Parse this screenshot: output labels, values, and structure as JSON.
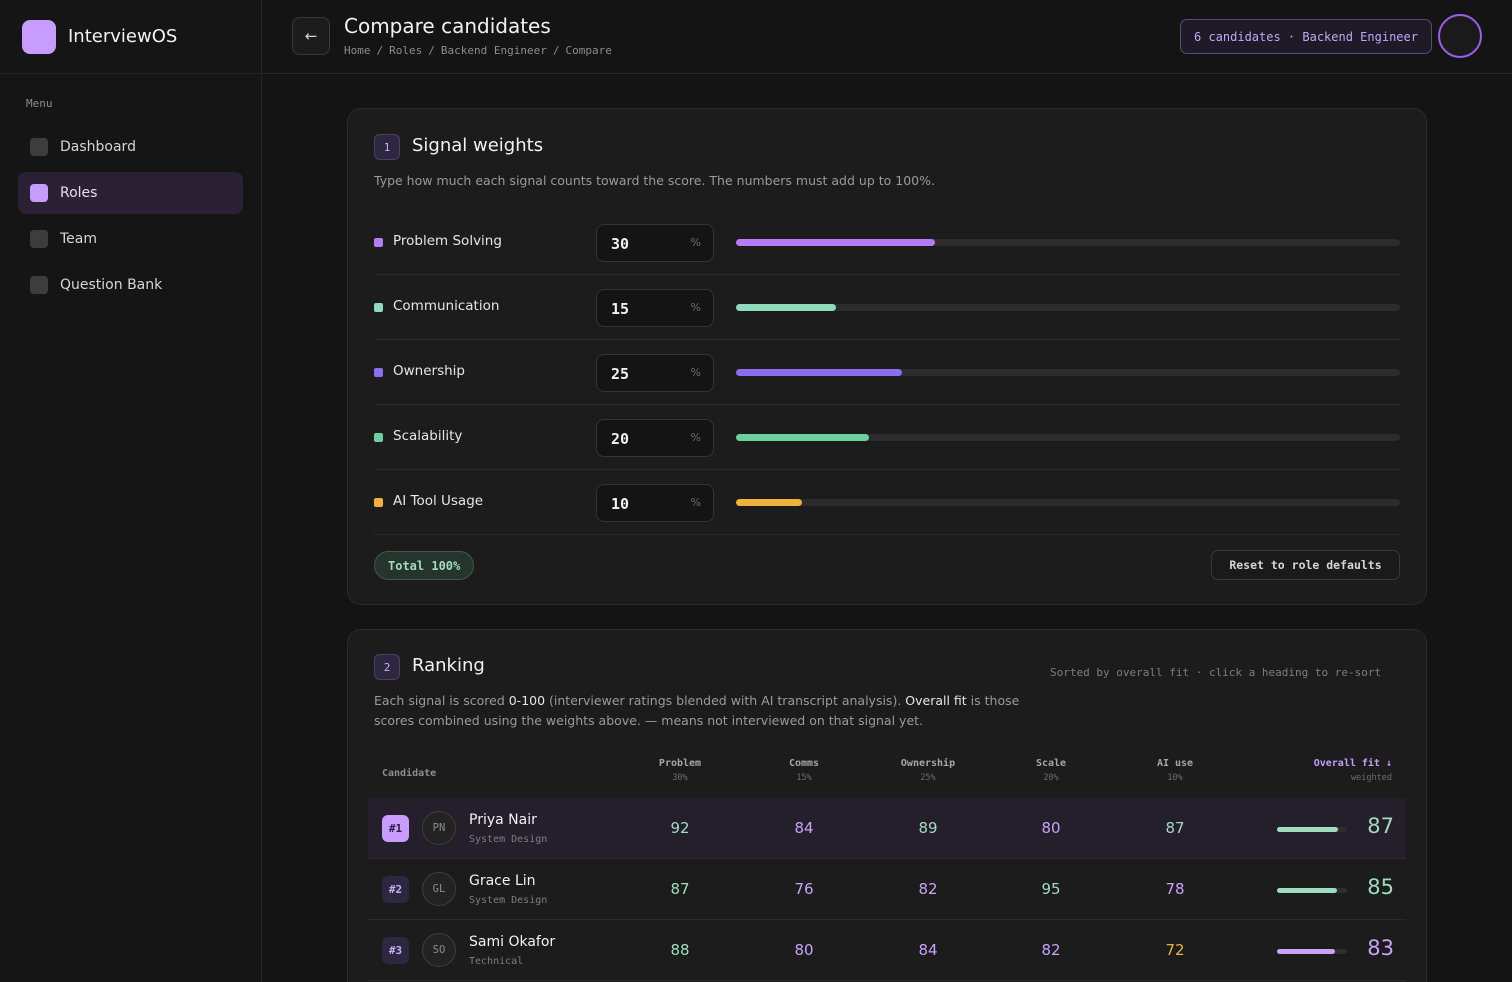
{
  "app": {
    "name": "InterviewOS"
  },
  "sidebar": {
    "menu_label": "Menu",
    "items": [
      {
        "label": "Dashboard",
        "active": false
      },
      {
        "label": "Roles",
        "active": true
      },
      {
        "label": "Team",
        "active": false
      },
      {
        "label": "Question Bank",
        "active": false
      }
    ]
  },
  "header": {
    "back_icon": "←",
    "title": "Compare candidates",
    "breadcrumb": [
      "Home",
      "Roles",
      "Backend Engineer",
      "Compare"
    ],
    "candidates_chip": "6 candidates · Backend Engineer"
  },
  "weights": {
    "step": "1",
    "title": "Signal weights",
    "description": "Type how much each signal counts toward the score. The numbers must add up to 100%.",
    "unit": "%",
    "items": [
      {
        "label": "Problem Solving",
        "value": "30",
        "fraction": 0.3,
        "color": "#b57cf5"
      },
      {
        "label": "Communication",
        "value": "15",
        "fraction": 0.15,
        "color": "#8fd9bd"
      },
      {
        "label": "Ownership",
        "value": "25",
        "fraction": 0.25,
        "color": "#8a6df0"
      },
      {
        "label": "Scalability",
        "value": "20",
        "fraction": 0.2,
        "color": "#6ccf9f"
      },
      {
        "label": "AI Tool Usage",
        "value": "10",
        "fraction": 0.1,
        "color": "#f0b23c"
      }
    ],
    "total_label": "Total 100%",
    "reset_label": "Reset to role defaults"
  },
  "ranking": {
    "step": "2",
    "title": "Ranking",
    "sort_note": "Sorted by overall fit · click a heading to re-sort",
    "desc_part1": "Each signal is scored ",
    "desc_strong1": "0-100",
    "desc_part2": " (interviewer ratings blended with AI transcript analysis). ",
    "desc_strong2": "Overall fit",
    "desc_part3": " is those scores combined using the weights above. — means not interviewed on that signal yet.",
    "columns": {
      "candidate": "Candidate",
      "problem": {
        "label": "Problem",
        "weight": "30%"
      },
      "comms": {
        "label": "Comms",
        "weight": "15%"
      },
      "ownership": {
        "label": "Ownership",
        "weight": "25%"
      },
      "scale": {
        "label": "Scale",
        "weight": "20%"
      },
      "ai": {
        "label": "AI use",
        "weight": "10%"
      },
      "overall": {
        "label": "Overall fit ↓",
        "sub": "weighted"
      }
    },
    "rows": [
      {
        "rank": "#1",
        "initials": "PN",
        "name": "Priya Nair",
        "type": "System Design",
        "problem": "92",
        "comms": "84",
        "ownership": "89",
        "scale": "80",
        "ai": "87",
        "overall": "87",
        "overall_fraction": 0.87
      },
      {
        "rank": "#2",
        "initials": "GL",
        "name": "Grace Lin",
        "type": "System Design",
        "problem": "87",
        "comms": "76",
        "ownership": "82",
        "scale": "95",
        "ai": "78",
        "overall": "85",
        "overall_fraction": 0.85
      },
      {
        "rank": "#3",
        "initials": "SO",
        "name": "Sami Okafor",
        "type": "Technical",
        "problem": "88",
        "comms": "80",
        "ownership": "84",
        "scale": "82",
        "ai": "72",
        "overall": "83",
        "overall_fraction": 0.83
      }
    ]
  },
  "colors": {
    "accent": "#c79bff",
    "score_green": "#9fdcbf",
    "score_purple": "#c9a2fa",
    "score_amber": "#f0b23c"
  }
}
